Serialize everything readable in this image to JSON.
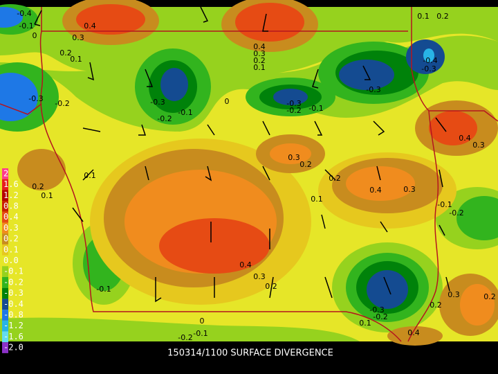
{
  "title": "150314/1100 SURFACE DIVERGENCE",
  "legend": [
    {
      "label": "2",
      "color": "#ff3c8c"
    },
    {
      "label": "1.6",
      "color": "#e61e1e"
    },
    {
      "label": "1.2",
      "color": "#b40000"
    },
    {
      "label": "0.8",
      "color": "#c81e00"
    },
    {
      "label": "0.4",
      "color": "#e64b14"
    },
    {
      "label": "0.3",
      "color": "#f08c1e"
    },
    {
      "label": "0.2",
      "color": "#c88c1e"
    },
    {
      "label": "0.1",
      "color": "#e6c81e"
    },
    {
      "label": "0.0",
      "color": "#e6e628"
    },
    {
      "label": "-0.1",
      "color": "#96d21e"
    },
    {
      "label": "-0.2",
      "color": "#32b41e"
    },
    {
      "label": "-0.3",
      "color": "#00820a"
    },
    {
      "label": "-0.4",
      "color": "#144b91"
    },
    {
      "label": "-0.8",
      "color": "#1e78e6"
    },
    {
      "label": "-1.2",
      "color": "#28b4e6"
    },
    {
      "label": "-1.6",
      "color": "#64dcf0"
    },
    {
      "label": "-2.0",
      "color": "#8c32c8"
    }
  ],
  "contour_labels": [
    "-0.4",
    "-0.1",
    "0",
    "0.4",
    "0.3",
    "0.2",
    "0.1",
    "-0.3",
    "-0.2",
    "-0.3",
    "-0.1",
    "-0.2",
    "0",
    "0.4",
    "0.3",
    "0.2",
    "0.1",
    "-0.3",
    "-0.2",
    "-0.1",
    "-0.3",
    "-0.4",
    "-0.3",
    "0.1",
    "0.2",
    "0.4",
    "0.3",
    "0.3",
    "0.2",
    "0.2",
    "0.1",
    "0.4",
    "0.3",
    "-0.1",
    "-0.2",
    "0.1",
    "0.2",
    "0.1",
    "0.4",
    "0.3",
    "0.2",
    "-0.1",
    "0",
    "-0.1",
    "-0.2",
    "-0.3",
    "-0.2",
    "0.1",
    "0.2",
    "0.3",
    "0.2",
    "0.4"
  ]
}
